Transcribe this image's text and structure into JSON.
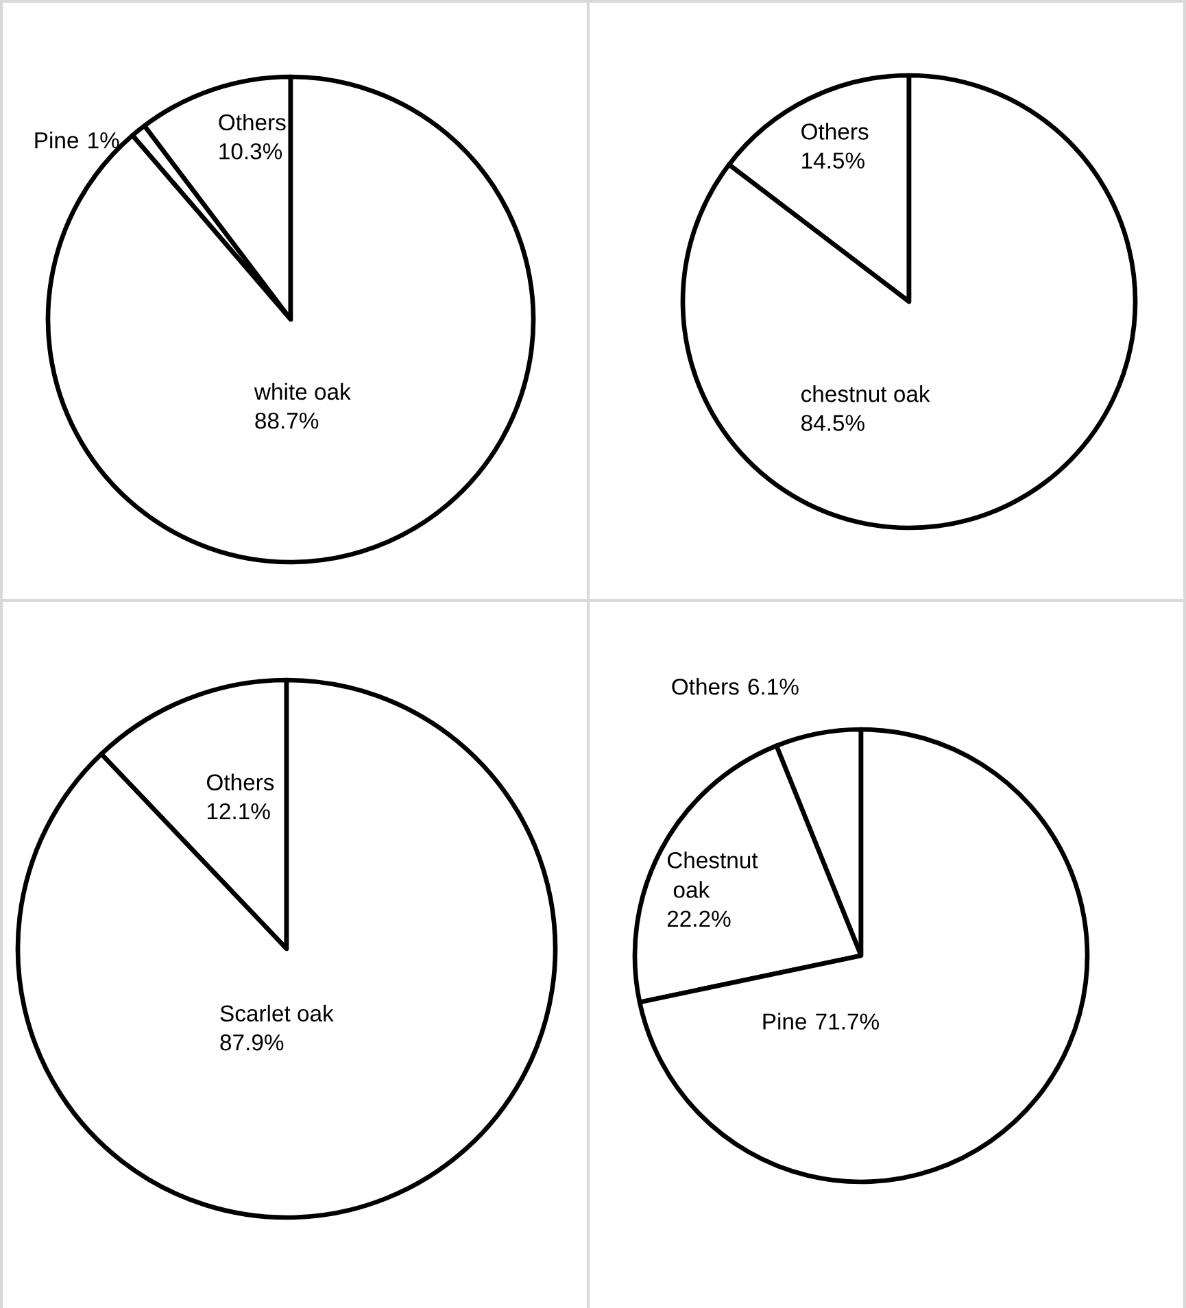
{
  "chart_data": [
    {
      "type": "pie",
      "categories": [
        "Others",
        "Pine",
        "white oak"
      ],
      "values": [
        10.3,
        1,
        88.7
      ],
      "colors": [
        "#ffffff",
        "#ffffff",
        "#ffffff"
      ],
      "value_labels": [
        "10.3%",
        "1%",
        "88.7%"
      ]
    },
    {
      "type": "pie",
      "categories": [
        "Others",
        "chestnut oak"
      ],
      "values": [
        14.5,
        84.5
      ],
      "colors": [
        "#ffffff",
        "#ffffff"
      ],
      "value_labels": [
        "14.5%",
        "84.5%"
      ]
    },
    {
      "type": "pie",
      "categories": [
        "Others",
        "Scarlet oak"
      ],
      "values": [
        12.1,
        87.9
      ],
      "colors": [
        "#ffffff",
        "#ffffff"
      ],
      "value_labels": [
        "12.1%",
        "87.9%"
      ]
    },
    {
      "type": "pie",
      "categories": [
        "Others",
        "Chestnut oak",
        "Pine"
      ],
      "values": [
        6.1,
        22.2,
        71.7
      ],
      "colors": [
        "#ffffff",
        "#ffffff",
        "#ffffff"
      ],
      "value_labels": [
        "6.1%",
        "22.2%",
        "71.7%"
      ]
    }
  ]
}
